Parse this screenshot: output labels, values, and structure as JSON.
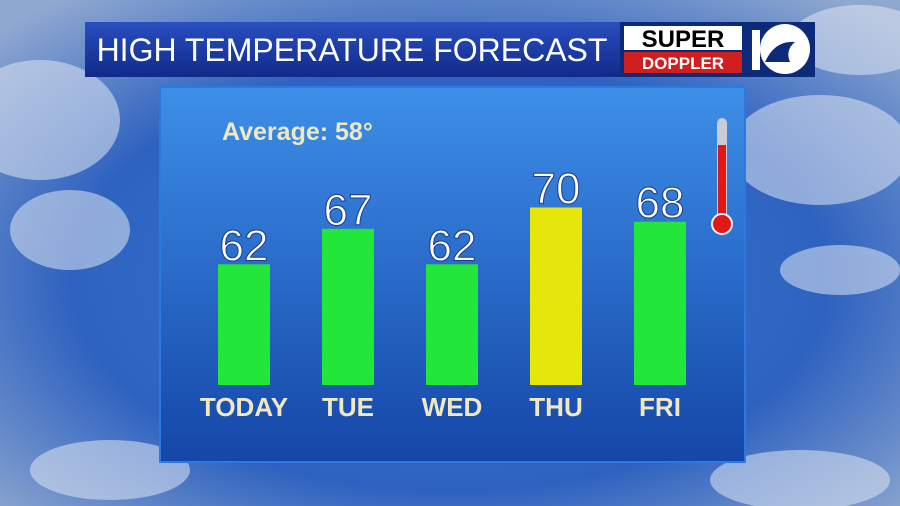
{
  "chart_data": {
    "type": "bar",
    "title": "HIGH TEMPERATURE FORECAST",
    "logo": {
      "top": "SUPER",
      "bottom": "DOPPLER"
    },
    "annotation": "Average: 58°",
    "categories": [
      "TODAY",
      "TUE",
      "WED",
      "THU",
      "FRI"
    ],
    "values": [
      62,
      67,
      62,
      70,
      68
    ],
    "colors": [
      "#22e63a",
      "#22e63a",
      "#22e63a",
      "#e6e60a",
      "#22e63a"
    ],
    "ylim": [
      45,
      75
    ]
  }
}
